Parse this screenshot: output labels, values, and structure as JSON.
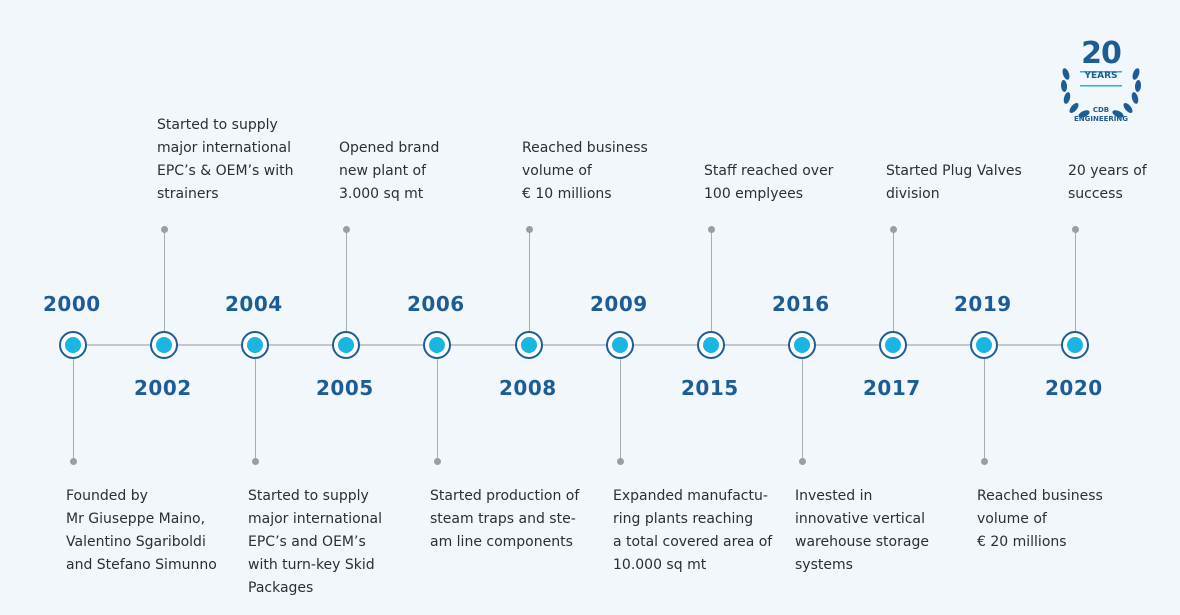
{
  "badge": {
    "number": "20",
    "label": "YEARS",
    "company": "CDB\nENGINEERING"
  },
  "colors": {
    "node_ring": "#1e5d96",
    "node_fill": "#1ab5e0",
    "year_text": "#1e5c95",
    "line": "#c3c7cb",
    "background": "#f1f7fb"
  },
  "milestones": [
    {
      "year": "2000",
      "text": "Founded by\nMr Giuseppe Maino,\nValentino Sgariboldi\nand Stefano Simunno"
    },
    {
      "year": "2002",
      "text": "Started to supply\nmajor international\nEPC’s & OEM’s with\nstrainers"
    },
    {
      "year": "2004",
      "text": "Started to supply\nmajor international\nEPC’s and OEM’s\nwith turn-key Skid\nPackages"
    },
    {
      "year": "2005",
      "text": "Opened brand\nnew plant of\n3.000 sq mt"
    },
    {
      "year": "2006",
      "text": "Started production of\nsteam traps and ste-\nam line components"
    },
    {
      "year": "2008",
      "text": "Reached business\nvolume of\n€ 10 millions"
    },
    {
      "year": "2009",
      "text": "Expanded manufactu-\nring plants reaching\na total covered area of\n10.000 sq mt"
    },
    {
      "year": "2015",
      "text": "Staff reached over\n100 emplyees"
    },
    {
      "year": "2016",
      "text": "Invested in\ninnovative vertical\nwarehouse storage\nsystems"
    },
    {
      "year": "2017",
      "text": "Started Plug Valves\ndivision"
    },
    {
      "year": "2019",
      "text": "Reached business\nvolume of\n€ 20 millions"
    },
    {
      "year": "2020",
      "text": "20 years of\nsuccess"
    }
  ]
}
